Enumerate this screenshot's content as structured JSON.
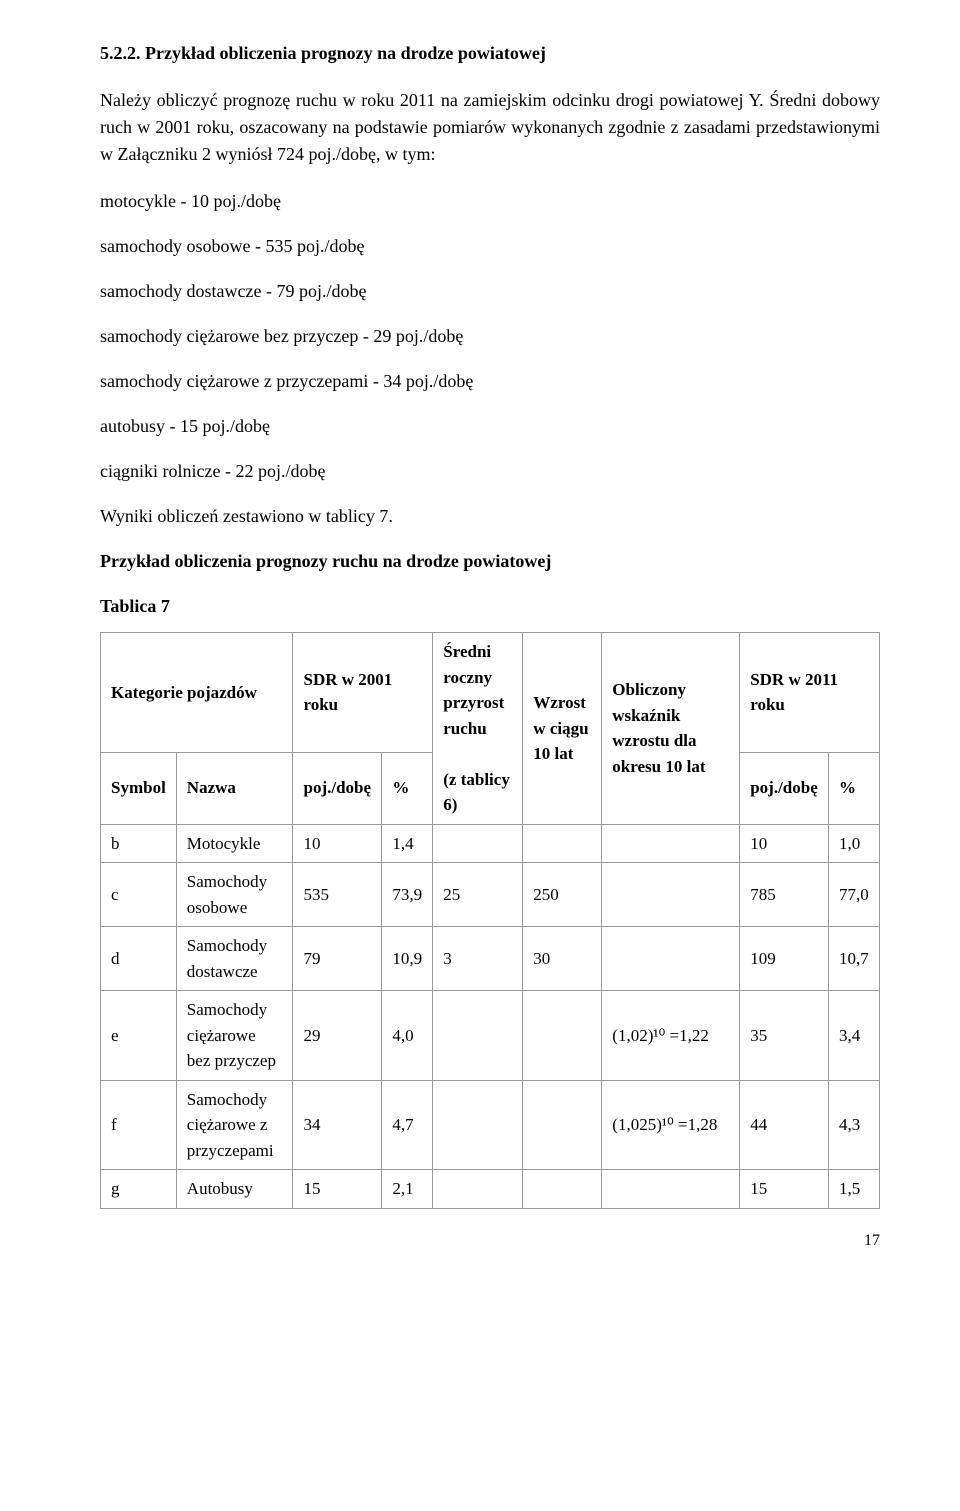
{
  "heading": "5.2.2. Przykład obliczenia prognozy na drodze powiatowej",
  "intro1": "Należy obliczyć prognozę ruchu w roku 2011 na zamiejskim odcinku drogi powiatowej Y. Średni dobowy ruch w 2001 roku, oszacowany na podstawie pomiarów wykonanych zgodnie z zasadami przedstawionymi w Załączniku 2 wyniósł 724 poj./dobę, w tym:",
  "list": [
    "motocykle - 10 poj./dobę",
    "samochody osobowe - 535 poj./dobę",
    "samochody dostawcze - 79 poj./dobę",
    "samochody ciężarowe bez przyczep - 29 poj./dobę",
    "samochody ciężarowe z przyczepami - 34 poj./dobę",
    "autobusy - 15 poj./dobę",
    "ciągniki rolnicze - 22 poj./dobę"
  ],
  "results_line": "Wyniki obliczeń zestawiono w tablicy 7.",
  "table_caption": "Przykład obliczenia prognozy ruchu na drodze powiatowej",
  "tablica_label": "Tablica 7",
  "table": {
    "headers": {
      "kategorie": "Kategorie pojazdów",
      "sdr2001": "SDR w 2001 roku",
      "sredni": "Średni roczny przyrost ruchu",
      "sredni_sub": "(z tablicy 6)",
      "wzrost": "Wzrost w ciągu 10 lat",
      "obliczony": "Obliczony wskaźnik wzrostu dla okresu 10 lat",
      "sdr2011": "SDR w 2011 roku",
      "symbol": "Symbol",
      "nazwa": "Nazwa",
      "pojdobe": "poj./dobę",
      "pct": "%"
    },
    "rows": [
      {
        "sym": "b",
        "nazwa": "Motocykle",
        "sdr2001": "10",
        "pct2001": "1,4",
        "sredni": "",
        "wzrost": "",
        "obl": "",
        "sdr2011": "10",
        "pct2011": "1,0"
      },
      {
        "sym": "c",
        "nazwa": "Samochody osobowe",
        "sdr2001": "535",
        "pct2001": "73,9",
        "sredni": "25",
        "wzrost": "250",
        "obl": "",
        "sdr2011": "785",
        "pct2011": "77,0"
      },
      {
        "sym": "d",
        "nazwa": "Samochody dostawcze",
        "sdr2001": "79",
        "pct2001": "10,9",
        "sredni": "3",
        "wzrost": "30",
        "obl": "",
        "sdr2011": "109",
        "pct2011": "10,7"
      },
      {
        "sym": "e",
        "nazwa": "Samochody ciężarowe bez przyczep",
        "sdr2001": "29",
        "pct2001": "4,0",
        "sredni": "",
        "wzrost": "",
        "obl": "(1,02)¹⁰ =1,22",
        "sdr2011": "35",
        "pct2011": "3,4"
      },
      {
        "sym": "f",
        "nazwa": "Samochody ciężarowe z przyczepami",
        "sdr2001": "34",
        "pct2001": "4,7",
        "sredni": "",
        "wzrost": "",
        "obl": "(1,025)¹⁰ =1,28",
        "sdr2011": "44",
        "pct2011": "4,3"
      },
      {
        "sym": "g",
        "nazwa": "Autobusy",
        "sdr2001": "15",
        "pct2001": "2,1",
        "sredni": "",
        "wzrost": "",
        "obl": "",
        "sdr2011": "15",
        "pct2011": "1,5"
      }
    ]
  },
  "page_num": "17",
  "colors": {
    "text": "#000000",
    "border": "#999999",
    "bg": "#ffffff"
  }
}
